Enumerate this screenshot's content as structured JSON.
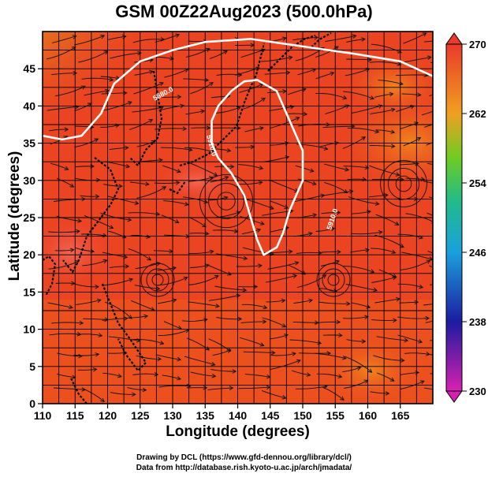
{
  "title": "GSM 00Z22Aug2023 (500.0hPa)",
  "xlabel": "Longitude (degrees)",
  "ylabel": "Latitude  (degrees)",
  "credits": [
    "Drawing by DCL (https://www.gfd-dennou.org/library/dcl/)",
    "Data from http://database.rish.kyoto-u.ac.jp/arch/jmadata/"
  ],
  "chart_data": {
    "type": "heatmap",
    "x_ticks": [
      "110",
      "115",
      "120",
      "125",
      "130",
      "135",
      "140",
      "145",
      "150",
      "155",
      "160",
      "165"
    ],
    "y_ticks": [
      "0",
      "5",
      "10",
      "15",
      "20",
      "25",
      "30",
      "35",
      "40",
      "45"
    ],
    "xlim": [
      110,
      170
    ],
    "ylim": [
      0,
      50
    ],
    "colorbar": {
      "ticks": [
        "270",
        "262",
        "254",
        "246",
        "238",
        "230"
      ],
      "range": [
        230,
        270
      ]
    },
    "contours": [
      {
        "label": "5880.0",
        "points": [
          [
            110,
            36
          ],
          [
            113,
            35.5
          ],
          [
            116,
            36
          ],
          [
            119,
            39
          ],
          [
            121,
            43
          ],
          [
            125,
            46
          ],
          [
            130,
            47.5
          ],
          [
            135,
            48.6
          ],
          [
            142,
            49
          ],
          [
            150,
            48
          ],
          [
            158,
            47
          ],
          [
            165,
            46
          ],
          [
            170,
            44
          ]
        ]
      },
      {
        "label": "5910.0",
        "points": [
          [
            137,
            40
          ],
          [
            139,
            42
          ],
          [
            141,
            43.3
          ],
          [
            143,
            43.5
          ],
          [
            146,
            42
          ],
          [
            148,
            38
          ],
          [
            150,
            34
          ],
          [
            150,
            30
          ],
          [
            148,
            26
          ],
          [
            147,
            23
          ],
          [
            146,
            21
          ],
          [
            144,
            20
          ],
          [
            143,
            22
          ],
          [
            142,
            25
          ],
          [
            141,
            28
          ],
          [
            139,
            31
          ],
          [
            137,
            33
          ],
          [
            136,
            35
          ],
          [
            136,
            38
          ],
          [
            137,
            40
          ]
        ]
      }
    ]
  }
}
